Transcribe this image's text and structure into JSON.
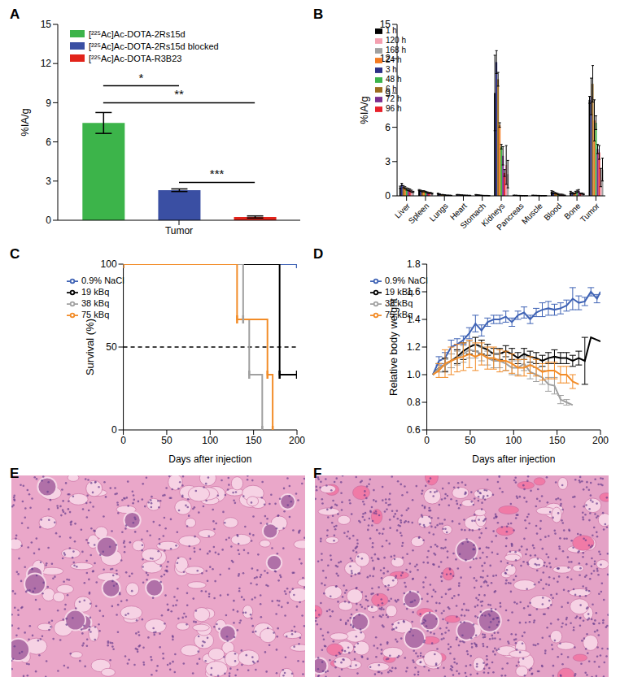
{
  "chart_data": [
    {
      "panel": "A",
      "type": "bar",
      "categories": [
        "Tumor"
      ],
      "ylabel": "%IA/g",
      "ylim": [
        0,
        15
      ],
      "yticks": [
        0,
        3,
        6,
        9,
        12,
        15
      ],
      "grid": false,
      "legend": "top-left",
      "series": [
        {
          "name": "[²²⁵Ac]Ac-DOTA-2Rs15d",
          "color": "#3cb44a",
          "values": [
            7.45
          ],
          "errors": [
            0.8
          ]
        },
        {
          "name": "[²²⁵Ac]Ac-DOTA-2Rs15d blocked",
          "color": "#3a4fa3",
          "values": [
            2.3
          ],
          "errors": [
            0.1
          ]
        },
        {
          "name": "[²²⁵Ac]Ac-DOTA-R3B23",
          "color": "#e2231a",
          "values": [
            0.25
          ],
          "errors": [
            0.08
          ]
        }
      ],
      "annotations": [
        {
          "text": "*",
          "between": [
            "[²²⁵Ac]Ac-DOTA-2Rs15d",
            "[²²⁵Ac]Ac-DOTA-2Rs15d blocked"
          ],
          "y": 10.3
        },
        {
          "text": "**",
          "between": [
            "[²²⁵Ac]Ac-DOTA-2Rs15d",
            "[²²⁵Ac]Ac-DOTA-R3B23"
          ],
          "y": 9.0
        },
        {
          "text": "***",
          "between": [
            "[²²⁵Ac]Ac-DOTA-2Rs15d blocked",
            "[²²⁵Ac]Ac-DOTA-R3B23"
          ],
          "y": 2.9
        }
      ]
    },
    {
      "panel": "B",
      "type": "bar",
      "categories": [
        "Liver",
        "Spleen",
        "Lungs",
        "Heart",
        "Stomach",
        "Kidneys",
        "Pancreas",
        "Muscle",
        "Blood",
        "Bone",
        "Tumor"
      ],
      "ylabel": "%IA/g",
      "ylim": [
        0,
        15
      ],
      "yticks": [
        0,
        3,
        6,
        9,
        12,
        15
      ],
      "grid": false,
      "legend": "top-left",
      "series": [
        {
          "name": "1 h",
          "color": "#000000",
          "values": [
            0.75,
            0.5,
            0.2,
            0.1,
            0.1,
            9.0,
            0.05,
            0.05,
            0.35,
            0.3,
            8.4
          ],
          "errors": [
            0.1,
            0.05,
            0.03,
            0.02,
            0.02,
            3.3,
            0.01,
            0.01,
            0.1,
            0.1,
            0.3
          ]
        },
        {
          "name": "3 h",
          "color": "#2b2f86",
          "values": [
            1.0,
            0.45,
            0.15,
            0.1,
            0.08,
            11.7,
            0.05,
            0.04,
            0.3,
            0.25,
            8.7
          ],
          "errors": [
            0.1,
            0.05,
            0.03,
            0.02,
            0.02,
            1.0,
            0.01,
            0.01,
            0.1,
            0.05,
            1.6
          ]
        },
        {
          "name": "6 h",
          "color": "#9c6b1e",
          "values": [
            0.8,
            0.4,
            0.1,
            0.08,
            0.06,
            10.2,
            0.04,
            0.04,
            0.25,
            0.2,
            9.8
          ],
          "errors": [
            0.1,
            0.05,
            0.02,
            0.02,
            0.02,
            0.6,
            0.01,
            0.01,
            0.05,
            0.05,
            1.6
          ]
        },
        {
          "name": "24 h",
          "color": "#f47a20",
          "values": [
            0.7,
            0.4,
            0.1,
            0.07,
            0.05,
            6.2,
            0.03,
            0.03,
            0.2,
            0.3,
            6.6
          ],
          "errors": [
            0.1,
            0.05,
            0.02,
            0.02,
            0.01,
            0.2,
            0.01,
            0.01,
            0.05,
            0.1,
            1.8
          ]
        },
        {
          "name": "48 h",
          "color": "#3cb44b",
          "values": [
            0.6,
            0.35,
            0.08,
            0.06,
            0.04,
            4.3,
            0.03,
            0.03,
            0.15,
            0.4,
            6.4
          ],
          "errors": [
            0.1,
            0.05,
            0.02,
            0.01,
            0.01,
            0.2,
            0.01,
            0.01,
            0.05,
            0.1,
            0.6
          ]
        },
        {
          "name": "72 h",
          "color": "#7b2d8e",
          "values": [
            0.55,
            0.3,
            0.06,
            0.05,
            0.03,
            3.5,
            0.02,
            0.02,
            0.1,
            0.45,
            4.1
          ],
          "errors": [
            0.1,
            0.05,
            0.01,
            0.01,
            0.01,
            0.8,
            0.01,
            0.01,
            0.05,
            0.1,
            0.4
          ]
        },
        {
          "name": "96 h",
          "color": "#e8202a",
          "values": [
            0.5,
            0.25,
            0.05,
            0.05,
            0.03,
            2.0,
            0.02,
            0.02,
            0.1,
            0.2,
            3.8
          ],
          "errors": [
            0.1,
            0.05,
            0.01,
            0.01,
            0.01,
            0.3,
            0.01,
            0.01,
            0.05,
            0.05,
            0.6
          ]
        },
        {
          "name": "120 h",
          "color": "#f4a0b0",
          "values": [
            0.4,
            0.25,
            0.05,
            0.04,
            0.03,
            2.7,
            0.02,
            0.02,
            0.08,
            0.2,
            1.6
          ],
          "errors": [
            0.1,
            0.05,
            0.01,
            0.01,
            0.01,
            1.7,
            0.01,
            0.01,
            0.05,
            0.05,
            0.8
          ]
        },
        {
          "name": "168 h",
          "color": "#a0a0a0",
          "values": [
            0.35,
            0.2,
            0.04,
            0.04,
            0.02,
            1.9,
            0.02,
            0.02,
            0.05,
            0.15,
            2.3
          ],
          "errors": [
            0.05,
            0.05,
            0.01,
            0.01,
            0.01,
            1.2,
            0.01,
            0.01,
            0.02,
            0.05,
            1.0
          ]
        }
      ]
    },
    {
      "panel": "C",
      "type": "line",
      "xlabel": "Days after injection",
      "ylabel": "Survival (%)",
      "xlim": [
        0,
        200
      ],
      "xticks": [
        0,
        50,
        100,
        150,
        200
      ],
      "ylim": [
        0,
        100
      ],
      "yticks": [
        0,
        50,
        100
      ],
      "grid": false,
      "legend": "top-left",
      "line_style": "step",
      "marker": "tick",
      "hline": 50,
      "series": [
        {
          "name": "0.9% NaCl",
          "color": "#3f63b5",
          "x": [
            0,
            200
          ],
          "values": [
            100,
            100
          ]
        },
        {
          "name": "19 kBq",
          "color": "#000000",
          "x": [
            0,
            180,
            200
          ],
          "values": [
            100,
            33.3,
            33.3
          ]
        },
        {
          "name": "38 kBq",
          "color": "#a0a0a0",
          "x": [
            0,
            138,
            145,
            160
          ],
          "values": [
            100,
            66.7,
            33.3,
            0
          ]
        },
        {
          "name": "75 kBq",
          "color": "#f28c28",
          "x": [
            0,
            131,
            166,
            172
          ],
          "values": [
            100,
            66.7,
            33.3,
            0
          ]
        }
      ]
    },
    {
      "panel": "D",
      "type": "line",
      "xlabel": "Days after injection",
      "ylabel": "Relative body weight",
      "xlim": [
        0,
        200
      ],
      "xticks": [
        0,
        50,
        100,
        150,
        200
      ],
      "ylim": [
        0.6,
        1.8
      ],
      "yticks": [
        0.6,
        0.8,
        {
          "value": 1,
          "label": "1.0"
        },
        1.2,
        1.4,
        1.6,
        1.8
      ],
      "grid": false,
      "legend": "top-left",
      "series": [
        {
          "name": "0.9% NaCl",
          "color": "#3f63b5",
          "x": [
            7,
            14,
            21,
            28,
            35,
            42,
            49,
            56,
            63,
            70,
            77,
            84,
            91,
            98,
            105,
            112,
            119,
            126,
            133,
            140,
            147,
            154,
            161,
            168,
            175,
            182,
            189,
            196,
            200
          ],
          "values": [
            1.0,
            1.1,
            1.12,
            1.2,
            1.22,
            1.25,
            1.3,
            1.37,
            1.32,
            1.38,
            1.4,
            1.4,
            1.42,
            1.38,
            1.43,
            1.45,
            1.4,
            1.45,
            1.47,
            1.48,
            1.47,
            1.48,
            1.5,
            1.55,
            1.52,
            1.53,
            1.6,
            1.55,
            1.6
          ],
          "errors": [
            0,
            0.03,
            0.04,
            0.05,
            0.04,
            0.03,
            0.04,
            0.06,
            0.04,
            0.03,
            0.03,
            0.03,
            0.04,
            0.03,
            0.03,
            0.04,
            0.03,
            0.03,
            0.05,
            0.05,
            0.04,
            0.04,
            0.04,
            0.08,
            0.05,
            0.03,
            0.03,
            0.03,
            0
          ]
        },
        {
          "name": "19 kBq",
          "color": "#000000",
          "x": [
            7,
            14,
            21,
            28,
            35,
            42,
            49,
            56,
            63,
            70,
            77,
            84,
            91,
            98,
            105,
            112,
            119,
            126,
            133,
            140,
            147,
            154,
            161,
            168,
            175,
            182,
            189,
            200
          ],
          "values": [
            1.0,
            1.05,
            1.07,
            1.1,
            1.13,
            1.17,
            1.2,
            1.22,
            1.2,
            1.18,
            1.15,
            1.15,
            1.17,
            1.15,
            1.12,
            1.15,
            1.13,
            1.12,
            1.1,
            1.12,
            1.13,
            1.12,
            1.12,
            1.1,
            1.12,
            1.1,
            1.27,
            1.24
          ],
          "errors": [
            0,
            0.03,
            0.05,
            0.05,
            0.05,
            0.06,
            0.05,
            0.05,
            0.05,
            0.04,
            0.04,
            0.04,
            0.04,
            0.04,
            0.04,
            0.04,
            0.04,
            0.04,
            0.04,
            0.04,
            0.05,
            0.04,
            0.04,
            0.04,
            0.05,
            0.17,
            0,
            0
          ]
        },
        {
          "name": "38 kBq",
          "color": "#a0a0a0",
          "x": [
            7,
            14,
            21,
            28,
            35,
            42,
            49,
            56,
            63,
            70,
            77,
            84,
            91,
            98,
            105,
            112,
            119,
            126,
            133,
            140,
            147,
            154,
            161,
            168
          ],
          "values": [
            1.0,
            1.05,
            1.07,
            1.1,
            1.12,
            1.15,
            1.18,
            1.17,
            1.15,
            1.12,
            1.1,
            1.1,
            1.08,
            1.05,
            1.05,
            1.08,
            1.02,
            1.0,
            0.98,
            0.93,
            0.92,
            0.82,
            0.8,
            0.78
          ],
          "errors": [
            0,
            0.03,
            0.04,
            0.05,
            0.05,
            0.06,
            0.06,
            0.05,
            0.05,
            0.05,
            0.05,
            0.05,
            0.05,
            0.05,
            0.05,
            0.05,
            0.05,
            0.05,
            0.05,
            0.05,
            0.06,
            0.03,
            0.02,
            0
          ]
        },
        {
          "name": "75 kBq",
          "color": "#f28c28",
          "x": [
            7,
            14,
            21,
            28,
            35,
            42,
            49,
            56,
            63,
            70,
            77,
            84,
            91,
            98,
            105,
            112,
            119,
            126,
            133,
            140,
            147,
            154,
            161,
            168,
            175
          ],
          "values": [
            1.0,
            1.03,
            1.08,
            1.1,
            1.12,
            1.13,
            1.15,
            1.13,
            1.15,
            1.12,
            1.12,
            1.1,
            1.1,
            1.08,
            1.05,
            1.05,
            1.07,
            1.05,
            1.02,
            1.03,
            1.03,
            1.0,
            1.0,
            0.95,
            0.93
          ],
          "errors": [
            0,
            0.05,
            0.1,
            0.1,
            0.1,
            0.1,
            0.1,
            0.1,
            0.08,
            0.08,
            0.08,
            0.08,
            0.07,
            0.07,
            0.06,
            0.06,
            0.06,
            0.06,
            0.06,
            0.06,
            0.06,
            0.06,
            0.06,
            0.05,
            0
          ]
        }
      ]
    }
  ],
  "images": [
    {
      "panel": "E"
    },
    {
      "panel": "F"
    }
  ]
}
